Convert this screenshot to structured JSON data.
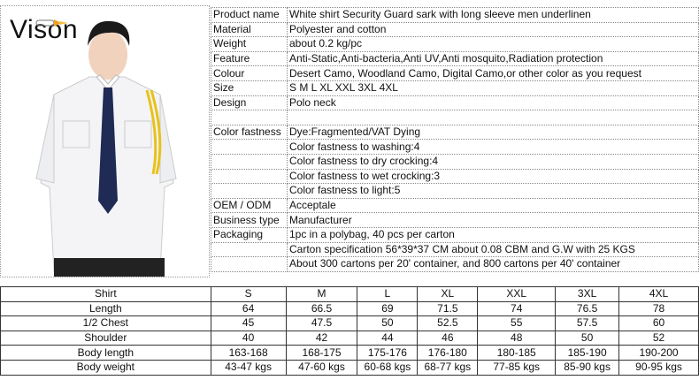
{
  "logo": {
    "text": "Vison"
  },
  "spec": [
    {
      "label": "Product name",
      "value": "White shirt Security Guard sark with long sleeve men underlinen"
    },
    {
      "label": "Material",
      "value": "Polyester  and  cotton"
    },
    {
      "label": "Weight",
      "value": "about 0.2 kg/pc"
    },
    {
      "label": "Feature",
      "value": "Anti-Static,Anti-bacteria,Anti UV,Anti mosquito,Radiation protection"
    },
    {
      "label": "Colour",
      "value": "Desert Camo, Woodland Camo, Digital Camo,or other color as you request"
    },
    {
      "label": "Size",
      "value": "S  M  L  XL  XXL 3XL 4XL"
    },
    {
      "label": "Design",
      "value": "Polo neck"
    },
    {
      "label": "",
      "value": ""
    },
    {
      "label": "Color fastness",
      "value": "Dye:Fragmented/VAT Dying"
    },
    {
      "label": "",
      "value": "Color fastness to washing:4"
    },
    {
      "label": "",
      "value": "Color fastness to dry crocking:4"
    },
    {
      "label": "",
      "value": "Color fastness to wet crocking:3"
    },
    {
      "label": "",
      "value": "Color fastness to light:5"
    },
    {
      "label": "OEM / ODM",
      "value": "Acceptale"
    },
    {
      "label": "Business type",
      "value": "Manufacturer"
    },
    {
      "label": "Packaging",
      "value": "1pc in a polybag, 40 pcs per carton"
    },
    {
      "label": "",
      "value": "Carton specification 56*39*37 CM about 0.08 CBM and G.W with 25 KGS"
    },
    {
      "label": "",
      "value": "About 300 cartons per 20' container, and 800 cartons per 40' container"
    }
  ],
  "size_chart": [
    [
      "Shirt",
      "S",
      "M",
      "L",
      "XL",
      "XXL",
      "3XL",
      "4XL"
    ],
    [
      "Length",
      "64",
      "66.5",
      "69",
      "71.5",
      "74",
      "76.5",
      "78"
    ],
    [
      "1/2 Chest",
      "45",
      "47.5",
      "50",
      "52.5",
      "55",
      "57.5",
      "60"
    ],
    [
      "Shoulder",
      "40",
      "42",
      "44",
      "46",
      "48",
      "50",
      "52"
    ],
    [
      "Body length",
      "163-168",
      "168-175",
      "175-176",
      "176-180",
      "180-185",
      "185-190",
      "190-200"
    ],
    [
      "Body weight",
      "43-47 kgs",
      "47-60 kgs",
      "60-68 kgs",
      "68-77 kgs",
      "77-85 kgs",
      "85-90 kgs",
      "90-95 kgs"
    ]
  ]
}
